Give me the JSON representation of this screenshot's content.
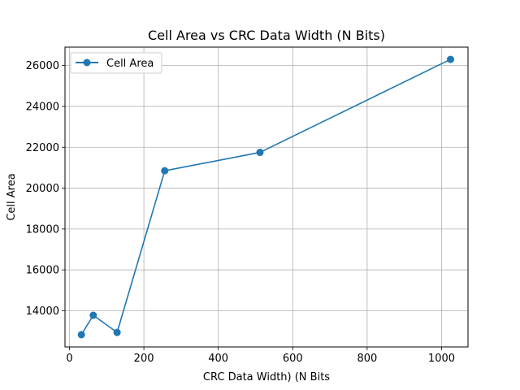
{
  "chart_data": {
    "type": "line",
    "title": "Cell Area vs CRC Data Width (N Bits)",
    "xlabel": "CRC Data Width) (N Bits",
    "ylabel": "Cell Area",
    "x": [
      32,
      64,
      128,
      256,
      512,
      1024
    ],
    "series": [
      {
        "name": "Cell Area",
        "values": [
          12830,
          13780,
          12940,
          20850,
          21750,
          26300
        ],
        "color": "#1f77b4",
        "marker": "circle"
      }
    ],
    "xlim": [
      -12,
      1071
    ],
    "ylim": [
      12230,
      26900
    ],
    "xticks": [
      0,
      200,
      400,
      600,
      800,
      1000
    ],
    "yticks": [
      14000,
      16000,
      18000,
      20000,
      22000,
      24000,
      26000
    ],
    "xtick_labels": [
      "0",
      "200",
      "400",
      "600",
      "800",
      "1000"
    ],
    "ytick_labels": [
      "14000",
      "16000",
      "18000",
      "20000",
      "22000",
      "24000",
      "26000"
    ],
    "grid": true,
    "legend": "upper-left"
  }
}
